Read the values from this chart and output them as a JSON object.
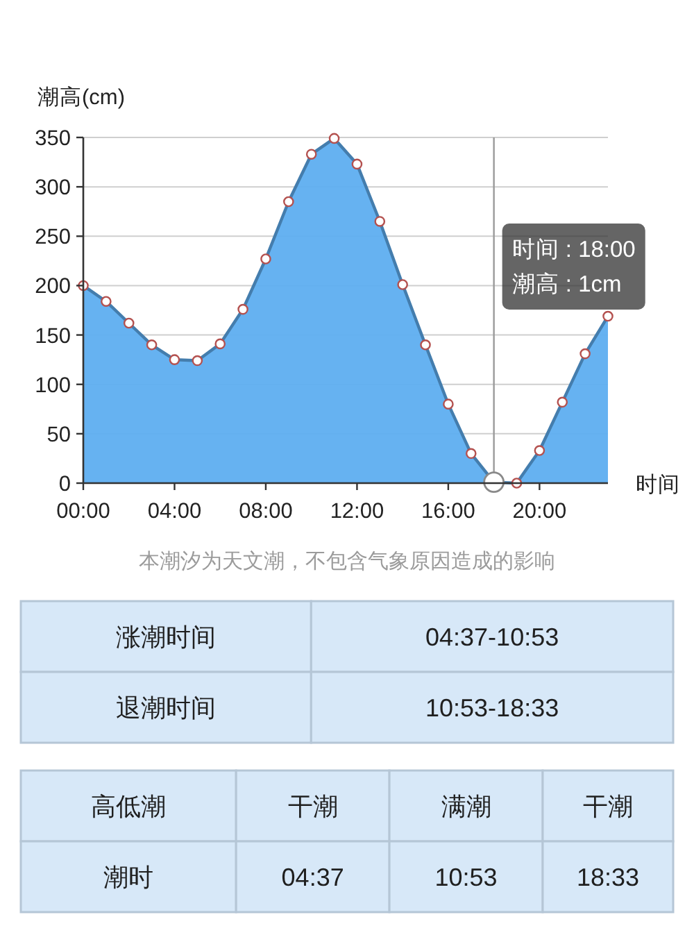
{
  "chart_data": [
    {
      "type": "area",
      "xlabel": "时间",
      "ylabel": "潮高(cm)",
      "x": [
        0,
        1,
        2,
        3,
        4,
        5,
        6,
        7,
        8,
        9,
        10,
        11,
        12,
        13,
        14,
        15,
        16,
        17,
        18,
        19,
        20,
        21,
        22,
        23
      ],
      "values": [
        200,
        184,
        162,
        140,
        125,
        124,
        141,
        176,
        227,
        285,
        333,
        349,
        323,
        265,
        201,
        140,
        80,
        30,
        1,
        0,
        33,
        82,
        131,
        169
      ],
      "color": "#5eaef0",
      "xlim": [
        0,
        23
      ],
      "ylim": [
        0,
        350
      ],
      "xticks": [
        {
          "value": 0,
          "label": "00:00"
        },
        {
          "value": 4,
          "label": "04:00"
        },
        {
          "value": 8,
          "label": "08:00"
        },
        {
          "value": 12,
          "label": "12:00"
        },
        {
          "value": 16,
          "label": "16:00"
        },
        {
          "value": 20,
          "label": "20:00"
        }
      ],
      "yticks": [
        0,
        50,
        100,
        150,
        200,
        250,
        300,
        350
      ],
      "grid": "y",
      "marker": "circle",
      "ref_lines": [
        {
          "axis": "x",
          "value": 18,
          "color": "#9a9a9a"
        }
      ],
      "annotations": [
        "时间 : 18:00\n潮高 : 1cm",
        "本潮汐为天文潮，不包含气象原因造成的影响"
      ]
    },
    {
      "type": "other",
      "annotations": [
        "涨潮时间",
        "04:37-10:53",
        "退潮时间",
        "10:53-18:33"
      ]
    },
    {
      "type": "other",
      "annotations": [
        "高低潮",
        "干潮",
        "满潮",
        "干潮",
        "潮时",
        "04:37",
        "10:53",
        "18:33"
      ]
    }
  ]
}
